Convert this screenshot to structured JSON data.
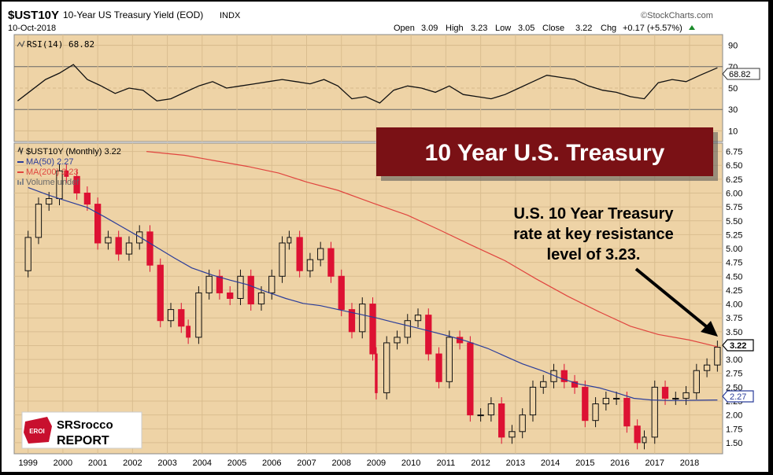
{
  "header": {
    "symbol": "$UST10Y",
    "description": "10-Year US Treasury Yield (EOD)",
    "exchange": "INDX",
    "date": "10-Oct-2018",
    "brand": "©StockCharts.com",
    "open_label": "Open",
    "open": "3.09",
    "high_label": "High",
    "high": "3.23",
    "low_label": "Low",
    "low": "3.05",
    "close_label": "Close",
    "close": "3.22",
    "chg_label": "Chg",
    "chg": "+0.17 (+5.57%)"
  },
  "rsi_panel": {
    "label": "RSI(14) 68.82",
    "value_badge": "68.82",
    "ticks": [
      "90",
      "70",
      "50",
      "30",
      "10"
    ]
  },
  "legend": {
    "series": "$UST10Y (Monthly) 3.22",
    "ma50": "MA(50) 2.27",
    "ma200": "MA(200) 3.23",
    "volume": "Volume undef"
  },
  "badges": {
    "close": "3.22",
    "ma50": "2.27"
  },
  "title_banner": "10 Year U.S. Treasury",
  "annotation": [
    "U.S. 10 Year Treasury",
    "rate at key resistance",
    "level of 3.23."
  ],
  "logo": {
    "top": "SRSrocco",
    "bottom": "REPORT",
    "mark": "EROI"
  },
  "colors": {
    "background": "#eed3a6",
    "up": "#111111",
    "down": "#dd1133",
    "ma50": "#2b3d9a",
    "ma200": "#e0453f",
    "banner": "#7a1115",
    "rsi_line": "#111111"
  },
  "chart_data": [
    {
      "type": "line",
      "title": "RSI(14) 68.82",
      "ylim": [
        0,
        100
      ],
      "yticks": [
        10,
        30,
        50,
        70,
        90
      ],
      "x": [
        1998.7,
        1999.1,
        1999.5,
        1999.9,
        2000.3,
        2000.7,
        2001.1,
        2001.5,
        2001.9,
        2002.3,
        2002.7,
        2003.1,
        2003.5,
        2003.9,
        2004.3,
        2004.7,
        2005.1,
        2005.5,
        2005.9,
        2006.3,
        2006.7,
        2007.1,
        2007.5,
        2007.9,
        2008.3,
        2008.7,
        2009.1,
        2009.5,
        2009.9,
        2010.3,
        2010.7,
        2011.1,
        2011.5,
        2011.9,
        2012.3,
        2012.7,
        2013.1,
        2013.5,
        2013.9,
        2014.3,
        2014.7,
        2015.1,
        2015.5,
        2015.9,
        2016.3,
        2016.7,
        2017.1,
        2017.5,
        2017.9,
        2018.3,
        2018.8
      ],
      "values": [
        38,
        48,
        58,
        64,
        72,
        58,
        52,
        45,
        50,
        48,
        38,
        40,
        46,
        52,
        56,
        50,
        52,
        54,
        56,
        58,
        56,
        54,
        58,
        52,
        40,
        42,
        36,
        48,
        52,
        50,
        46,
        52,
        44,
        42,
        40,
        44,
        50,
        56,
        62,
        60,
        58,
        52,
        48,
        46,
        42,
        40,
        55,
        58,
        56,
        62,
        69
      ]
    },
    {
      "type": "candlestick",
      "title": "$UST10Y (Monthly) 3.22",
      "ylim": [
        1.3,
        6.9
      ],
      "yticks": [
        1.5,
        1.75,
        2.0,
        2.25,
        2.5,
        2.75,
        3.0,
        3.25,
        3.5,
        3.75,
        4.0,
        4.25,
        4.5,
        4.75,
        5.0,
        5.25,
        5.5,
        5.75,
        6.0,
        6.25,
        6.5,
        6.75
      ],
      "xticks": [
        "1999",
        "2000",
        "2001",
        "2002",
        "2003",
        "2004",
        "2005",
        "2006",
        "2007",
        "2008",
        "2009",
        "2010",
        "2011",
        "2012",
        "2013",
        "2014",
        "2015",
        "2016",
        "2017",
        "2018"
      ],
      "xrange": [
        1998.6,
        2018.95
      ],
      "price_x": [
        1998.7,
        1999.0,
        1999.3,
        1999.6,
        1999.9,
        2000.1,
        2000.4,
        2000.7,
        2001.0,
        2001.3,
        2001.6,
        2001.9,
        2002.2,
        2002.5,
        2002.8,
        2003.1,
        2003.4,
        2003.6,
        2003.9,
        2004.2,
        2004.5,
        2004.8,
        2005.1,
        2005.4,
        2005.7,
        2006.0,
        2006.3,
        2006.5,
        2006.8,
        2007.1,
        2007.4,
        2007.7,
        2008.0,
        2008.3,
        2008.6,
        2008.9,
        2009.0,
        2009.3,
        2009.6,
        2009.9,
        2010.2,
        2010.5,
        2010.8,
        2011.1,
        2011.4,
        2011.7,
        2012.0,
        2012.3,
        2012.6,
        2012.9,
        2013.2,
        2013.5,
        2013.8,
        2014.1,
        2014.4,
        2014.7,
        2015.0,
        2015.3,
        2015.6,
        2015.9,
        2016.2,
        2016.5,
        2016.7,
        2017.0,
        2017.3,
        2017.6,
        2017.9,
        2018.2,
        2018.5,
        2018.8
      ],
      "close": [
        4.6,
        5.2,
        5.8,
        5.9,
        6.4,
        6.3,
        6.0,
        5.8,
        5.1,
        5.2,
        4.9,
        5.1,
        5.3,
        4.7,
        3.7,
        3.9,
        3.6,
        3.4,
        4.2,
        4.5,
        4.2,
        4.1,
        4.5,
        4.0,
        4.2,
        4.5,
        5.1,
        5.2,
        4.6,
        4.8,
        5.0,
        4.5,
        3.9,
        3.5,
        4.0,
        3.1,
        2.4,
        3.3,
        3.4,
        3.7,
        3.8,
        3.1,
        2.6,
        3.4,
        3.3,
        2.0,
        2.0,
        2.2,
        1.6,
        1.7,
        2.0,
        2.5,
        2.6,
        2.8,
        2.6,
        2.5,
        1.9,
        2.2,
        2.3,
        2.3,
        1.8,
        1.5,
        1.6,
        2.5,
        2.3,
        2.3,
        2.4,
        2.8,
        2.9,
        3.22
      ],
      "ma50": [
        6.1,
        5.96,
        5.86,
        5.74,
        5.57,
        5.39,
        5.21,
        5.02,
        4.83,
        4.65,
        4.52,
        4.43,
        4.35,
        4.23,
        4.1,
        4.01,
        3.97,
        3.9,
        3.82,
        3.75,
        3.67,
        3.58,
        3.5,
        3.42,
        3.33,
        3.2,
        3.06,
        2.92,
        2.79,
        2.66,
        2.56,
        2.49,
        2.4,
        2.3,
        2.27,
        2.26,
        2.27
      ],
      "ma50_x": [
        1999.0,
        1999.6,
        2000.1,
        2000.7,
        2001.2,
        2001.7,
        2002.2,
        2002.7,
        2003.2,
        2003.7,
        2004.3,
        2004.8,
        2005.3,
        2005.8,
        2006.4,
        2006.9,
        2007.4,
        2007.9,
        2008.5,
        2009.0,
        2009.5,
        2010.1,
        2010.6,
        2011.1,
        2011.6,
        2012.2,
        2012.7,
        2013.2,
        2013.8,
        2014.3,
        2014.8,
        2015.4,
        2015.9,
        2016.4,
        2016.9,
        2017.5,
        2018.8
      ],
      "ma200": [
        6.75,
        6.68,
        6.58,
        6.48,
        6.36,
        6.2,
        6.05,
        5.82,
        5.6,
        5.34,
        5.07,
        4.78,
        4.45,
        4.14,
        3.86,
        3.6,
        3.45,
        3.35,
        3.23
      ],
      "ma200_x": [
        2002.4,
        2003.5,
        2004.4,
        2005.3,
        2006.2,
        2007.0,
        2007.9,
        2008.9,
        2009.9,
        2010.8,
        2011.7,
        2012.7,
        2013.6,
        2014.5,
        2015.4,
        2016.3,
        2017.1,
        2018.0,
        2018.8
      ]
    }
  ]
}
